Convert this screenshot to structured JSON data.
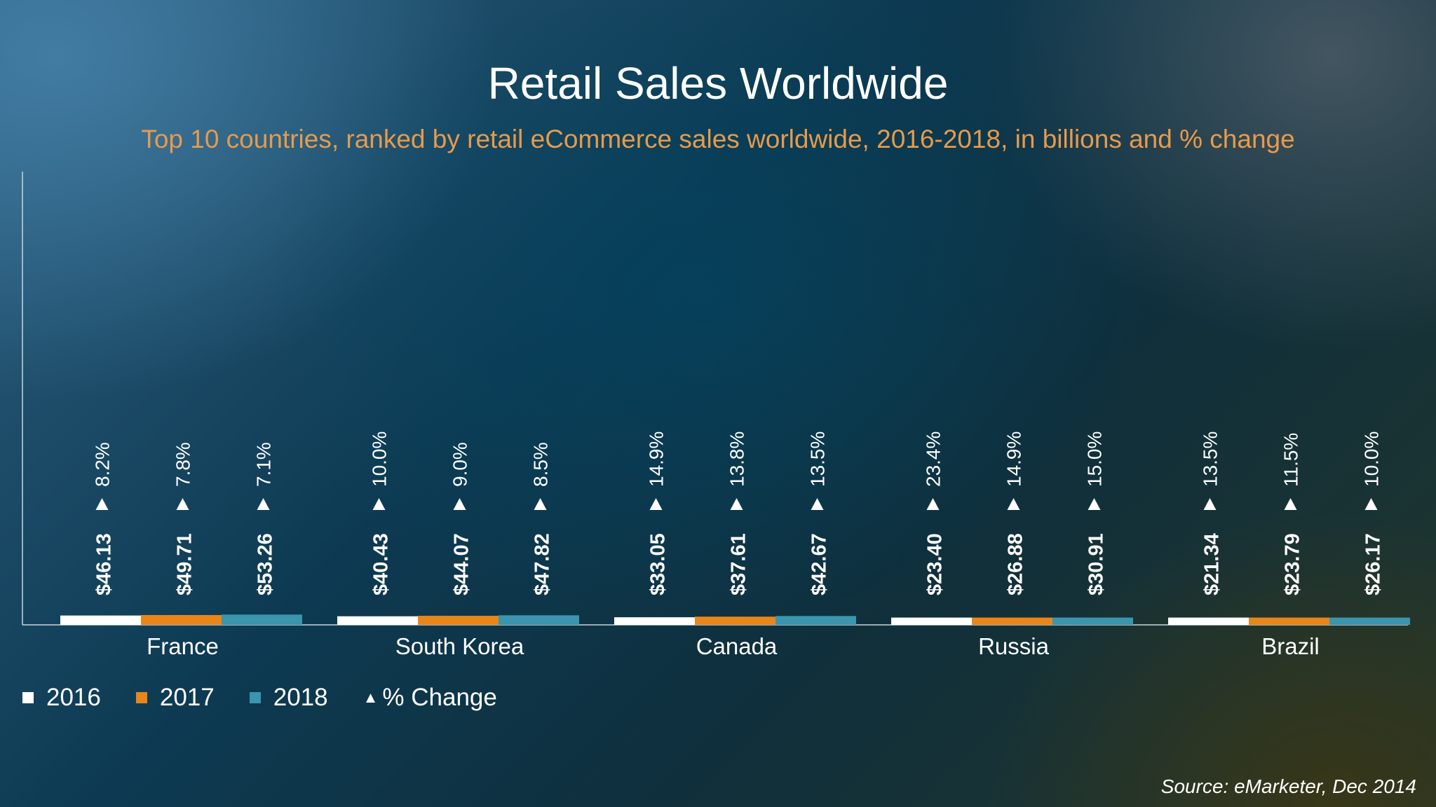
{
  "title": "Retail Sales Worldwide",
  "subtitle": "Top 10 countries, ranked by retail eCommerce sales worldwide, 2016-2018, in billions and % change",
  "source": "Source: eMarketer, Dec 2014",
  "legend": {
    "s2016": "2016",
    "s2017": "2017",
    "s2018": "2018",
    "change": "% Change"
  },
  "colors": {
    "s2016": "#ffffff",
    "s2017": "#e8861a",
    "s2018": "#3a95ad",
    "text": "#ffffff",
    "subtitle": "#e89a4a"
  },
  "chart_data": {
    "type": "bar",
    "categories": [
      "France",
      "South Korea",
      "Canada",
      "Russia",
      "Brazil"
    ],
    "series": [
      {
        "name": "2016",
        "values": [
          46.13,
          40.43,
          33.05,
          23.4,
          21.34
        ],
        "labels": [
          "$46.13",
          "$40.43",
          "$33.05",
          "$23.40",
          "$21.34"
        ],
        "change": [
          "8.2%",
          "10.0%",
          "14.9%",
          "23.4%",
          "13.5%"
        ]
      },
      {
        "name": "2017",
        "values": [
          49.71,
          44.07,
          37.61,
          26.88,
          23.79
        ],
        "labels": [
          "$49.71",
          "$44.07",
          "$37.61",
          "$26.88",
          "$23.79"
        ],
        "change": [
          "7.8%",
          "9.0%",
          "13.8%",
          "14.9%",
          "11.5%"
        ]
      },
      {
        "name": "2018",
        "values": [
          53.26,
          47.82,
          42.67,
          30.91,
          26.17
        ],
        "labels": [
          "$53.26",
          "$47.82",
          "$42.67",
          "$30.91",
          "$26.17"
        ],
        "change": [
          "7.1%",
          "8.5%",
          "13.5%",
          "15.0%",
          "10.0%"
        ]
      }
    ],
    "change_marker": "▲",
    "legend_position": "bottom-left",
    "grid": false
  }
}
